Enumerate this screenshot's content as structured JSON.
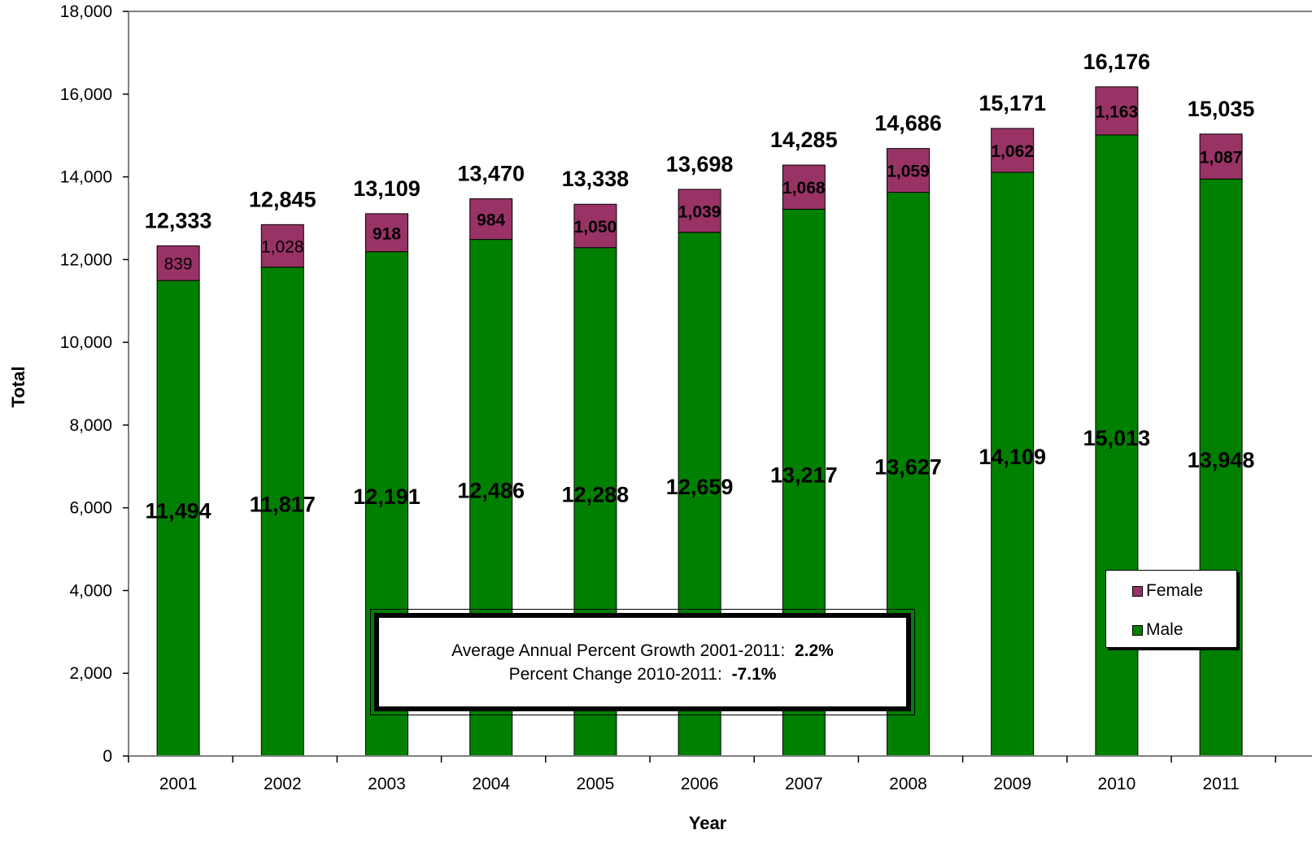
{
  "chart_data": {
    "type": "bar",
    "stacked": true,
    "categories": [
      "2001",
      "2002",
      "2003",
      "2004",
      "2005",
      "2006",
      "2007",
      "2008",
      "2009",
      "2010",
      "2011"
    ],
    "series": [
      {
        "name": "Male",
        "color": "#008000",
        "values": [
          11494,
          11817,
          12191,
          12486,
          12288,
          12659,
          13217,
          13627,
          14109,
          15013,
          13948
        ],
        "labels": [
          "11,494",
          "11,817",
          "12,191",
          "12,486",
          "12,288",
          "12,659",
          "13,217",
          "13,627",
          "14,109",
          "15,013",
          "13,948"
        ]
      },
      {
        "name": "Female",
        "color": "#993366",
        "values": [
          839,
          1028,
          918,
          984,
          1050,
          1039,
          1068,
          1059,
          1062,
          1163,
          1087
        ],
        "labels": [
          "839",
          "1,028",
          "918",
          "984",
          "1,050",
          "1,039",
          "1,068",
          "1,059",
          "1,062",
          "1,163",
          "1,087"
        ]
      }
    ],
    "totals": [
      12333,
      12845,
      13109,
      13470,
      13338,
      13698,
      14285,
      14686,
      15171,
      16176,
      15035
    ],
    "total_labels": [
      "12,333",
      "12,845",
      "13,109",
      "13,470",
      "13,338",
      "13,698",
      "14,285",
      "14,686",
      "15,171",
      "16,176",
      "15,035"
    ],
    "xlabel": "Year",
    "ylabel": "Total",
    "ylim": [
      0,
      18000
    ],
    "yticks": [
      0,
      2000,
      4000,
      6000,
      8000,
      10000,
      12000,
      14000,
      16000,
      18000
    ],
    "ytick_labels": [
      "0",
      "2,000",
      "4,000",
      "6,000",
      "8,000",
      "10,000",
      "12,000",
      "14,000",
      "16,000",
      "18,000"
    ],
    "grid": false,
    "legend_position": "bottom-right"
  },
  "note": {
    "line1_text": "Average Annual  Percent Growth 2001-2011:",
    "line1_value": "2.2%",
    "line2_text": "Percent Change 2010-2011:",
    "line2_value": "-7.1%"
  },
  "legend": {
    "female_label": "Female",
    "male_label": "Male"
  }
}
